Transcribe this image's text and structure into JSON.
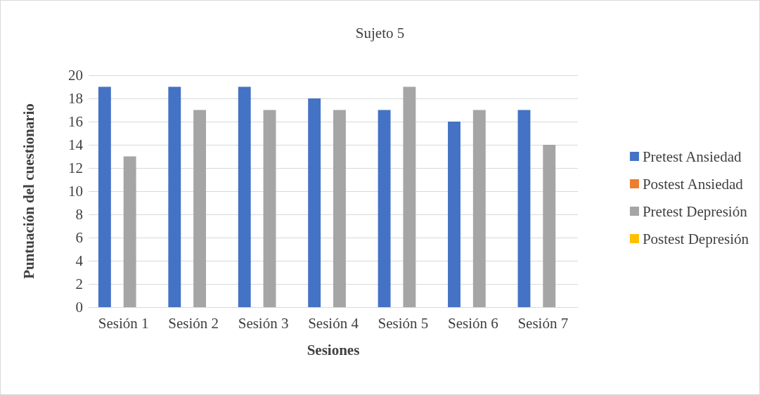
{
  "chart_data": {
    "type": "bar",
    "title": "Sujeto 5",
    "xlabel": "Sesiones",
    "ylabel": "Puntuación del cuestionario",
    "categories": [
      "Sesión 1",
      "Sesión 2",
      "Sesión 3",
      "Sesión 4",
      "Sesión 5",
      "Sesión 6",
      "Sesión 7"
    ],
    "series": [
      {
        "name": "Pretest Ansiedad",
        "color": "#4472c4",
        "values": [
          19,
          19,
          19,
          18,
          17,
          16,
          17
        ]
      },
      {
        "name": "Postest Ansiedad",
        "color": "#ed7d31",
        "values": [
          null,
          null,
          null,
          null,
          null,
          null,
          null
        ]
      },
      {
        "name": "Pretest Depresión",
        "color": "#a5a5a5",
        "values": [
          13,
          17,
          17,
          17,
          19,
          17,
          14
        ]
      },
      {
        "name": "Postest Depresión",
        "color": "#ffc000",
        "values": [
          null,
          null,
          null,
          null,
          null,
          null,
          null
        ]
      }
    ],
    "ylim": [
      0,
      20
    ],
    "yticks": [
      0,
      2,
      4,
      6,
      8,
      10,
      12,
      14,
      16,
      18,
      20
    ],
    "grid": "y",
    "legend": "right"
  }
}
